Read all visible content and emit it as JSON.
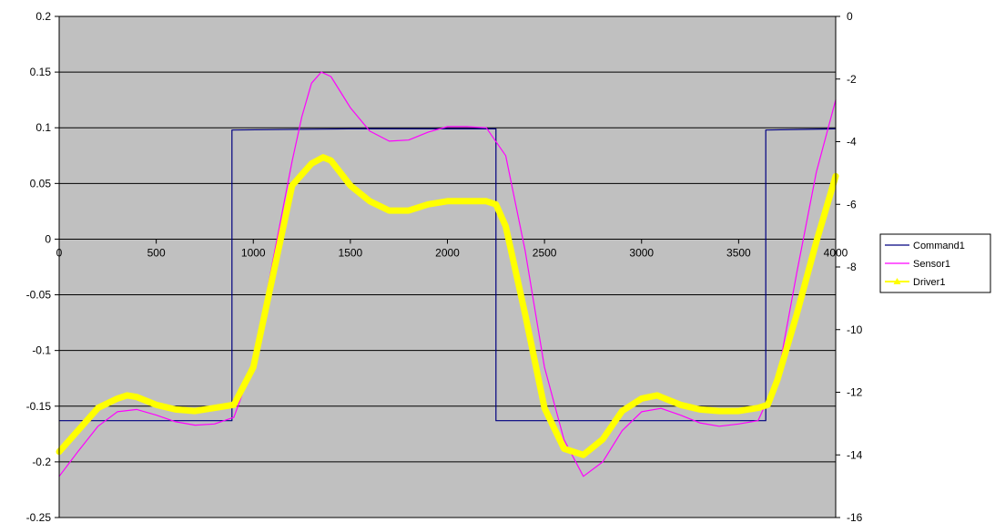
{
  "chart_data": {
    "type": "line",
    "x_axis": {
      "range": [
        0,
        4000
      ],
      "ticks": [
        0,
        500,
        1000,
        1500,
        2000,
        2500,
        3000,
        3500,
        4000
      ],
      "tick_labels": [
        "0",
        "500",
        "1000",
        "1500",
        "2000",
        "2500",
        "3000",
        "3500",
        "4000"
      ]
    },
    "y_left": {
      "range": [
        -0.25,
        0.2
      ],
      "ticks": [
        -0.25,
        -0.2,
        -0.15,
        -0.1,
        -0.05,
        0,
        0.05,
        0.1,
        0.15,
        0.2
      ],
      "tick_labels": [
        "-0.25",
        "-0.2",
        "-0.15",
        "-0.1",
        "-0.05",
        "0",
        "0.05",
        "0.1",
        "0.15",
        "0.2"
      ]
    },
    "y_right": {
      "range": [
        -16,
        0
      ],
      "ticks": [
        -16,
        -14,
        -12,
        -10,
        -8,
        -6,
        -4,
        -2,
        0
      ],
      "tick_labels": [
        "-16",
        "-14",
        "-12",
        "-10",
        "-8",
        "-6",
        "-4",
        "-2",
        "0"
      ]
    },
    "grid": "horizontal",
    "legend_position": "right",
    "plot_background": "#c0c0c0",
    "series": [
      {
        "name": "Command1",
        "color": "#000080",
        "axis": "left",
        "x": [
          0,
          890,
          890,
          1500,
          2000,
          2250,
          2250,
          2700,
          3000,
          3640,
          3640,
          4000
        ],
        "y": [
          -0.163,
          -0.163,
          0.098,
          0.099,
          0.099,
          0.099,
          -0.163,
          -0.163,
          -0.163,
          -0.163,
          0.098,
          0.099
        ]
      },
      {
        "name": "Sensor1",
        "color": "#ff00ff",
        "axis": "left",
        "x": [
          0,
          100,
          200,
          300,
          400,
          500,
          600,
          700,
          800,
          900,
          1000,
          1100,
          1200,
          1250,
          1300,
          1350,
          1400,
          1500,
          1600,
          1700,
          1800,
          1900,
          2000,
          2100,
          2200,
          2300,
          2400,
          2500,
          2600,
          2700,
          2800,
          2900,
          3000,
          3100,
          3200,
          3300,
          3400,
          3500,
          3600,
          3700,
          3800,
          3900,
          4000
        ],
        "y": [
          -0.213,
          -0.19,
          -0.168,
          -0.155,
          -0.153,
          -0.158,
          -0.164,
          -0.167,
          -0.166,
          -0.16,
          -0.112,
          -0.02,
          0.07,
          0.11,
          0.14,
          0.15,
          0.146,
          0.118,
          0.097,
          0.088,
          0.089,
          0.096,
          0.101,
          0.101,
          0.1,
          0.075,
          -0.01,
          -0.115,
          -0.18,
          -0.213,
          -0.2,
          -0.172,
          -0.155,
          -0.152,
          -0.158,
          -0.165,
          -0.168,
          -0.166,
          -0.163,
          -0.125,
          -0.03,
          0.06,
          0.125
        ]
      },
      {
        "name": "Driver1",
        "color": "#ffff00",
        "axis": "right",
        "x": [
          0,
          100,
          200,
          300,
          350,
          400,
          500,
          600,
          700,
          800,
          900,
          1000,
          1100,
          1200,
          1300,
          1360,
          1400,
          1500,
          1600,
          1700,
          1800,
          1900,
          2000,
          2100,
          2200,
          2250,
          2300,
          2400,
          2500,
          2600,
          2700,
          2800,
          2900,
          3000,
          3080,
          3100,
          3200,
          3300,
          3400,
          3500,
          3600,
          3650,
          3700,
          3800,
          3900,
          4000
        ],
        "y": [
          -13.9,
          -13.2,
          -12.5,
          -12.2,
          -12.1,
          -12.15,
          -12.4,
          -12.55,
          -12.6,
          -12.5,
          -12.4,
          -11.2,
          -8.3,
          -5.4,
          -4.7,
          -4.5,
          -4.6,
          -5.4,
          -5.9,
          -6.2,
          -6.2,
          -6.0,
          -5.9,
          -5.9,
          -5.9,
          -6.0,
          -6.7,
          -9.5,
          -12.5,
          -13.8,
          -14.0,
          -13.5,
          -12.6,
          -12.2,
          -12.1,
          -12.15,
          -12.4,
          -12.55,
          -12.6,
          -12.6,
          -12.5,
          -12.4,
          -11.6,
          -9.5,
          -7.2,
          -5.1
        ]
      }
    ]
  }
}
